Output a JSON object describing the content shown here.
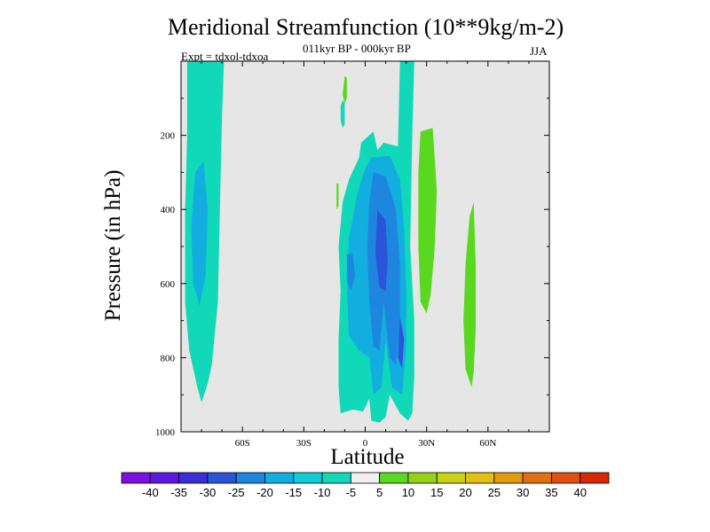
{
  "chart_data": {
    "type": "heatmap",
    "title": "Meridional Streamfunction (10**9kg/m-2)",
    "subtitle": "011kyr BP - 000kyr BP",
    "left_string": "Expt = tdxol-tdxoa",
    "right_string": "JJA",
    "xlabel": "Latitude",
    "ylabel": "Pressure (in hPa)",
    "xlim": [
      -90,
      90
    ],
    "ylim": [
      1000,
      0
    ],
    "x_ticks": [
      {
        "value": -60,
        "label": "60S"
      },
      {
        "value": -30,
        "label": "30S"
      },
      {
        "value": 0,
        "label": "0"
      },
      {
        "value": 30,
        "label": "30N"
      },
      {
        "value": 60,
        "label": "60N"
      }
    ],
    "y_ticks": [
      {
        "value": 200,
        "label": "200"
      },
      {
        "value": 400,
        "label": "400"
      },
      {
        "value": 600,
        "label": "600"
      },
      {
        "value": 800,
        "label": "800"
      },
      {
        "value": 1000,
        "label": "1000"
      }
    ],
    "background_color": "#e6e6e6",
    "contour_levels": [
      -40,
      -35,
      -30,
      -25,
      -20,
      -15,
      -10,
      -5,
      5,
      10,
      15,
      20,
      25,
      30,
      35,
      40
    ],
    "colorbar_colors": [
      "#7b10e0",
      "#5a18e0",
      "#3a2ed8",
      "#2a55d8",
      "#1f86e0",
      "#12aee0",
      "#10cad8",
      "#10d8b8",
      "#f0f0f0",
      "#5ad820",
      "#98d018",
      "#c8d018",
      "#e0c010",
      "#e09a10",
      "#e07010",
      "#e05010",
      "#d82808"
    ],
    "regions": [
      {
        "name": "sh-high-lat-band",
        "value_range": [
          -10,
          -5
        ],
        "color": "#10d8b8",
        "polygon": [
          [
            -87,
            0
          ],
          [
            -69,
            0
          ],
          [
            -70,
            150
          ],
          [
            -71,
            400
          ],
          [
            -72,
            650
          ],
          [
            -75,
            820
          ],
          [
            -77,
            870
          ],
          [
            -80,
            920
          ],
          [
            -82,
            880
          ],
          [
            -86,
            780
          ],
          [
            -88,
            650
          ],
          [
            -88,
            400
          ],
          [
            -87,
            200
          ]
        ]
      },
      {
        "name": "sh-high-lat-core",
        "value_range": [
          -15,
          -10
        ],
        "color": "#12aee0",
        "polygon": [
          [
            -83,
            300
          ],
          [
            -79,
            270
          ],
          [
            -77,
            400
          ],
          [
            -78,
            580
          ],
          [
            -81,
            660
          ],
          [
            -84,
            600
          ],
          [
            -85,
            450
          ]
        ]
      },
      {
        "name": "tropical-outer",
        "value_range": [
          -10,
          -5
        ],
        "color": "#10d8b8",
        "polygon": [
          [
            9,
            220
          ],
          [
            16,
            230
          ],
          [
            17,
            0
          ],
          [
            24,
            0
          ],
          [
            23,
            200
          ],
          [
            22,
            500
          ],
          [
            24,
            700
          ],
          [
            24,
            850
          ],
          [
            23,
            950
          ],
          [
            21,
            970
          ],
          [
            17,
            950
          ],
          [
            12,
            900
          ],
          [
            10,
            960
          ],
          [
            7,
            975
          ],
          [
            3,
            970
          ],
          [
            2,
            910
          ],
          [
            -1,
            945
          ],
          [
            -6,
            940
          ],
          [
            -12,
            950
          ],
          [
            -13,
            880
          ],
          [
            -13,
            750
          ],
          [
            -12,
            620
          ],
          [
            -13,
            500
          ],
          [
            -11,
            380
          ],
          [
            -8,
            320
          ],
          [
            -3,
            260
          ],
          [
            -2,
            220
          ],
          [
            4,
            190
          ],
          [
            6,
            240
          ]
        ]
      },
      {
        "name": "tropical-mid",
        "value_range": [
          -15,
          -10
        ],
        "color": "#12aee0",
        "polygon": [
          [
            3,
            260
          ],
          [
            12,
            255
          ],
          [
            17,
            320
          ],
          [
            19,
            450
          ],
          [
            20,
            600
          ],
          [
            20,
            780
          ],
          [
            18,
            900
          ],
          [
            13,
            880
          ],
          [
            10,
            750
          ],
          [
            8,
            880
          ],
          [
            4,
            900
          ],
          [
            2,
            800
          ],
          [
            -3,
            780
          ],
          [
            -8,
            740
          ],
          [
            -9,
            600
          ],
          [
            -8,
            480
          ],
          [
            -4,
            360
          ],
          [
            0,
            290
          ]
        ]
      },
      {
        "name": "tropical-inner",
        "value_range": [
          -20,
          -15
        ],
        "color": "#1f86e0",
        "polygon": [
          [
            4,
            300
          ],
          [
            10,
            310
          ],
          [
            15,
            400
          ],
          [
            17,
            550
          ],
          [
            17,
            720
          ],
          [
            15,
            820
          ],
          [
            12,
            800
          ],
          [
            9,
            650
          ],
          [
            7,
            780
          ],
          [
            4,
            770
          ],
          [
            2,
            650
          ],
          [
            1,
            500
          ],
          [
            2,
            380
          ]
        ]
      },
      {
        "name": "tropical-core",
        "value_range": [
          -25,
          -20
        ],
        "color": "#2a55d8",
        "polygon": [
          [
            6,
            400
          ],
          [
            10,
            430
          ],
          [
            11,
            540
          ],
          [
            10,
            620
          ],
          [
            7,
            610
          ],
          [
            5,
            520
          ]
        ]
      },
      {
        "name": "tropical-core-lower",
        "value_range": [
          -25,
          -20
        ],
        "color": "#2a55d8",
        "polygon": [
          [
            17,
            690
          ],
          [
            19,
            750
          ],
          [
            18,
            830
          ],
          [
            16,
            800
          ]
        ]
      },
      {
        "name": "tropical-south-lobe",
        "value_range": [
          -20,
          -15
        ],
        "color": "#1f86e0",
        "polygon": [
          [
            -9,
            520
          ],
          [
            -6,
            520
          ],
          [
            -5,
            580
          ],
          [
            -7,
            620
          ],
          [
            -9,
            590
          ]
        ]
      },
      {
        "name": "tropical-upper-speck",
        "value_range": [
          -10,
          -5
        ],
        "color": "#10d8b8",
        "polygon": [
          [
            -11,
            105
          ],
          [
            -10,
            115
          ],
          [
            -10,
            170
          ],
          [
            -11,
            180
          ],
          [
            -12,
            160
          ],
          [
            -12,
            120
          ]
        ]
      },
      {
        "name": "nh-subtropical-positive",
        "value_range": [
          5,
          10
        ],
        "color": "#5ad820",
        "polygon": [
          [
            27,
            190
          ],
          [
            33,
            180
          ],
          [
            35,
            350
          ],
          [
            34,
            500
          ],
          [
            32,
            630
          ],
          [
            30,
            680
          ],
          [
            27,
            650
          ],
          [
            26,
            500
          ],
          [
            26,
            300
          ]
        ]
      },
      {
        "name": "nh-midlat-positive",
        "value_range": [
          5,
          10
        ],
        "color": "#5ad820",
        "polygon": [
          [
            51,
            420
          ],
          [
            53,
            380
          ],
          [
            54,
            550
          ],
          [
            54,
            720
          ],
          [
            53,
            840
          ],
          [
            52,
            880
          ],
          [
            49,
            830
          ],
          [
            48,
            700
          ],
          [
            49,
            550
          ]
        ]
      },
      {
        "name": "upper-positive-speck-a",
        "value_range": [
          5,
          10
        ],
        "color": "#5ad820",
        "polygon": [
          [
            -10,
            40
          ],
          [
            -9,
            45
          ],
          [
            -9,
            100
          ],
          [
            -10,
            115
          ],
          [
            -11,
            90
          ]
        ]
      },
      {
        "name": "upper-positive-speck-b",
        "value_range": [
          5,
          10
        ],
        "color": "#5ad820",
        "polygon": [
          [
            -14,
            330
          ],
          [
            -13,
            330
          ],
          [
            -13,
            390
          ],
          [
            -14,
            400
          ]
        ]
      }
    ]
  }
}
